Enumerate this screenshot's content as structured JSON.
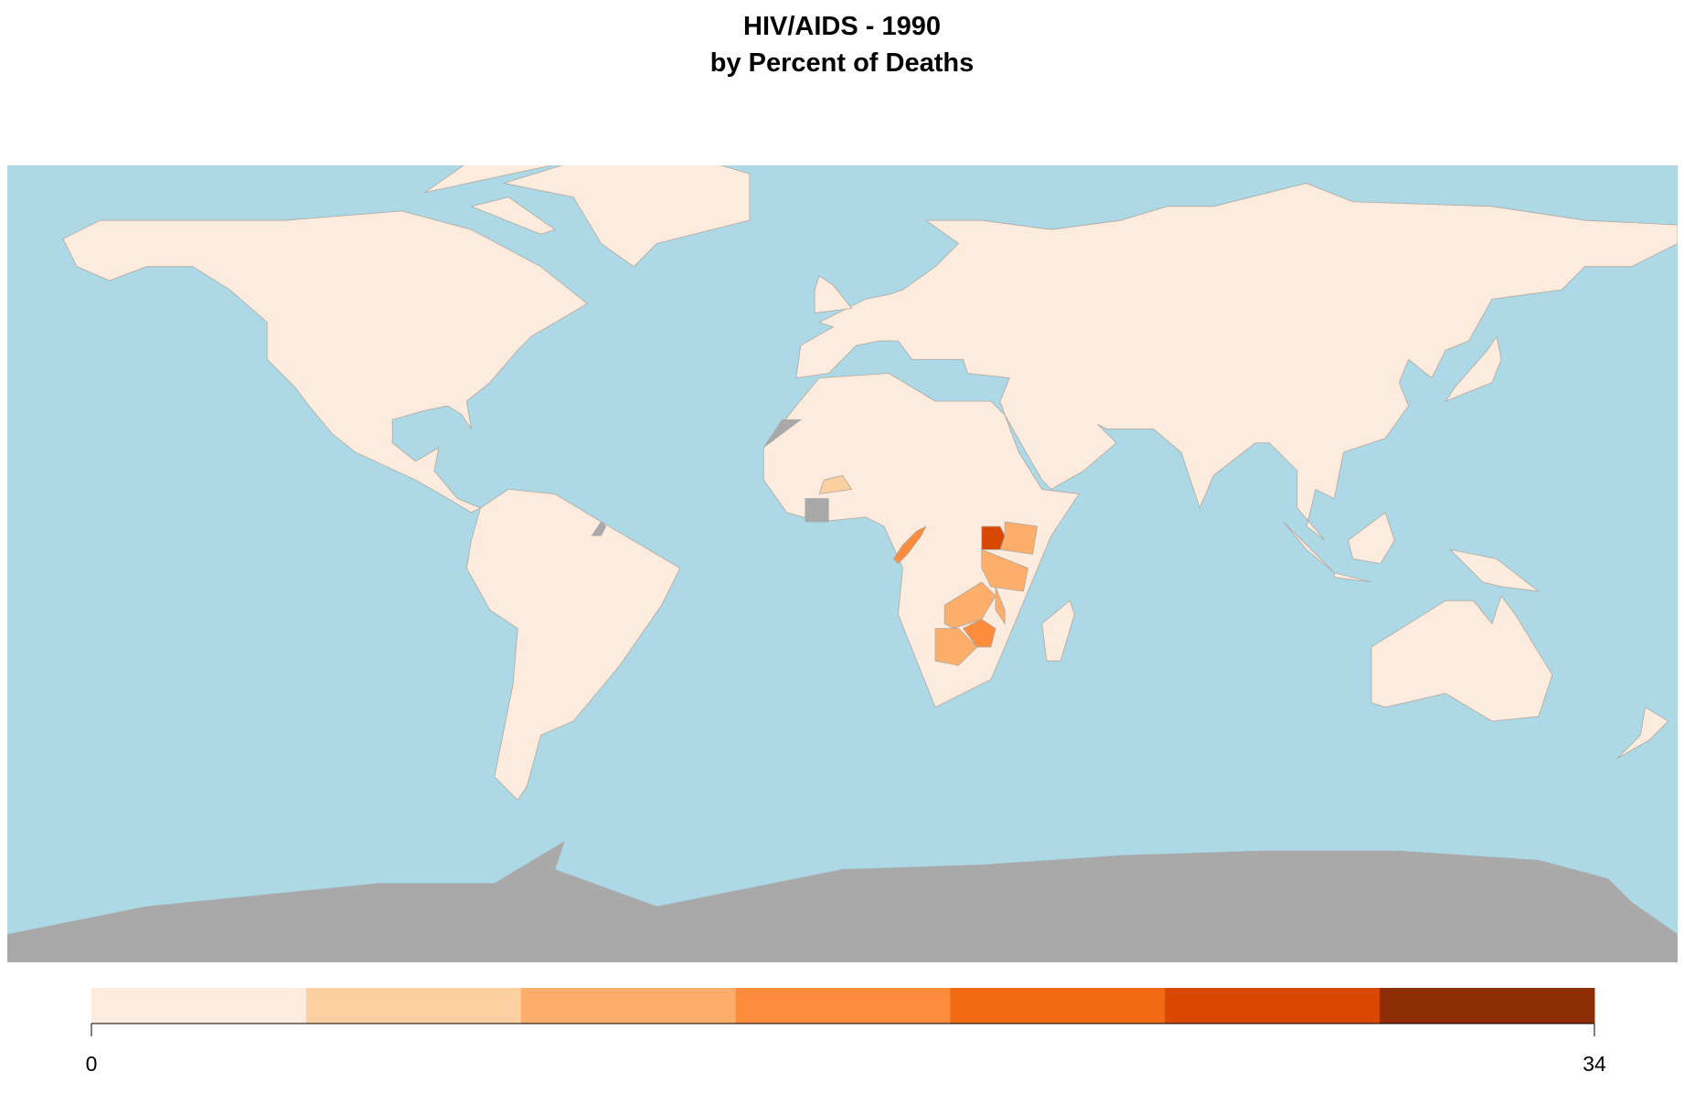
{
  "title": "HIV/AIDS - 1990",
  "subtitle": "by Percent of Deaths",
  "legend": {
    "colors": [
      "#fdebdd",
      "#fdd0a2",
      "#fdae6b",
      "#fd8d3c",
      "#f16913",
      "#d94801",
      "#8c2d04"
    ],
    "min": 0,
    "max": 34
  }
}
